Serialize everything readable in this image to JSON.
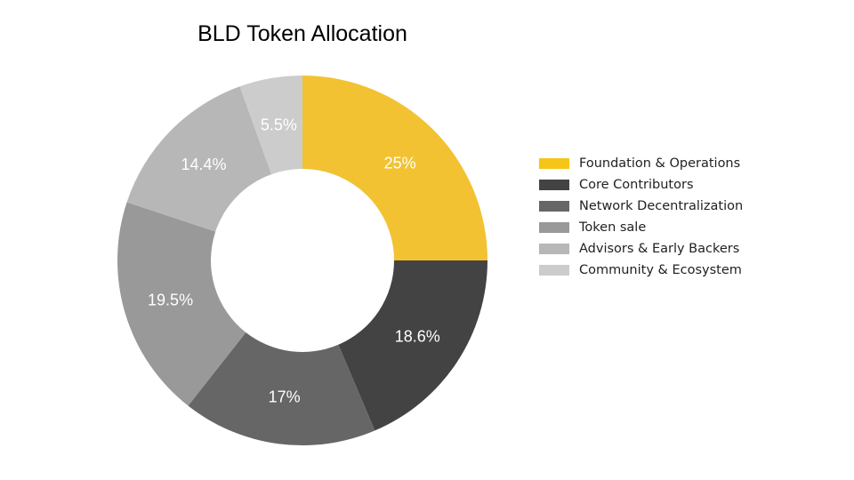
{
  "chart_data": {
    "type": "pie",
    "title": "BLD Token Allocation",
    "legend_position": "right",
    "slices": [
      {
        "label": "Foundation & Operations",
        "value": 25,
        "value_label": "25%",
        "color": "#F2C233",
        "legend_color": "#F5C518"
      },
      {
        "label": "Core Contributors",
        "value": 18.6,
        "value_label": "18.6%",
        "color": "#434343",
        "legend_color": "#434343"
      },
      {
        "label": "Network Decentralization",
        "value": 17,
        "value_label": "17%",
        "color": "#666666",
        "legend_color": "#666666"
      },
      {
        "label": "Token sale",
        "value": 19.5,
        "value_label": "19.5%",
        "color": "#999999",
        "legend_color": "#999999"
      },
      {
        "label": "Advisors & Early Backers",
        "value": 14.4,
        "value_label": "14.4%",
        "color": "#B7B7B7",
        "legend_color": "#B7B7B7"
      },
      {
        "label": "Community & Ecosystem",
        "value": 5.5,
        "value_label": "5.5%",
        "color": "#CCCCCC",
        "legend_color": "#CCCCCC"
      }
    ]
  }
}
